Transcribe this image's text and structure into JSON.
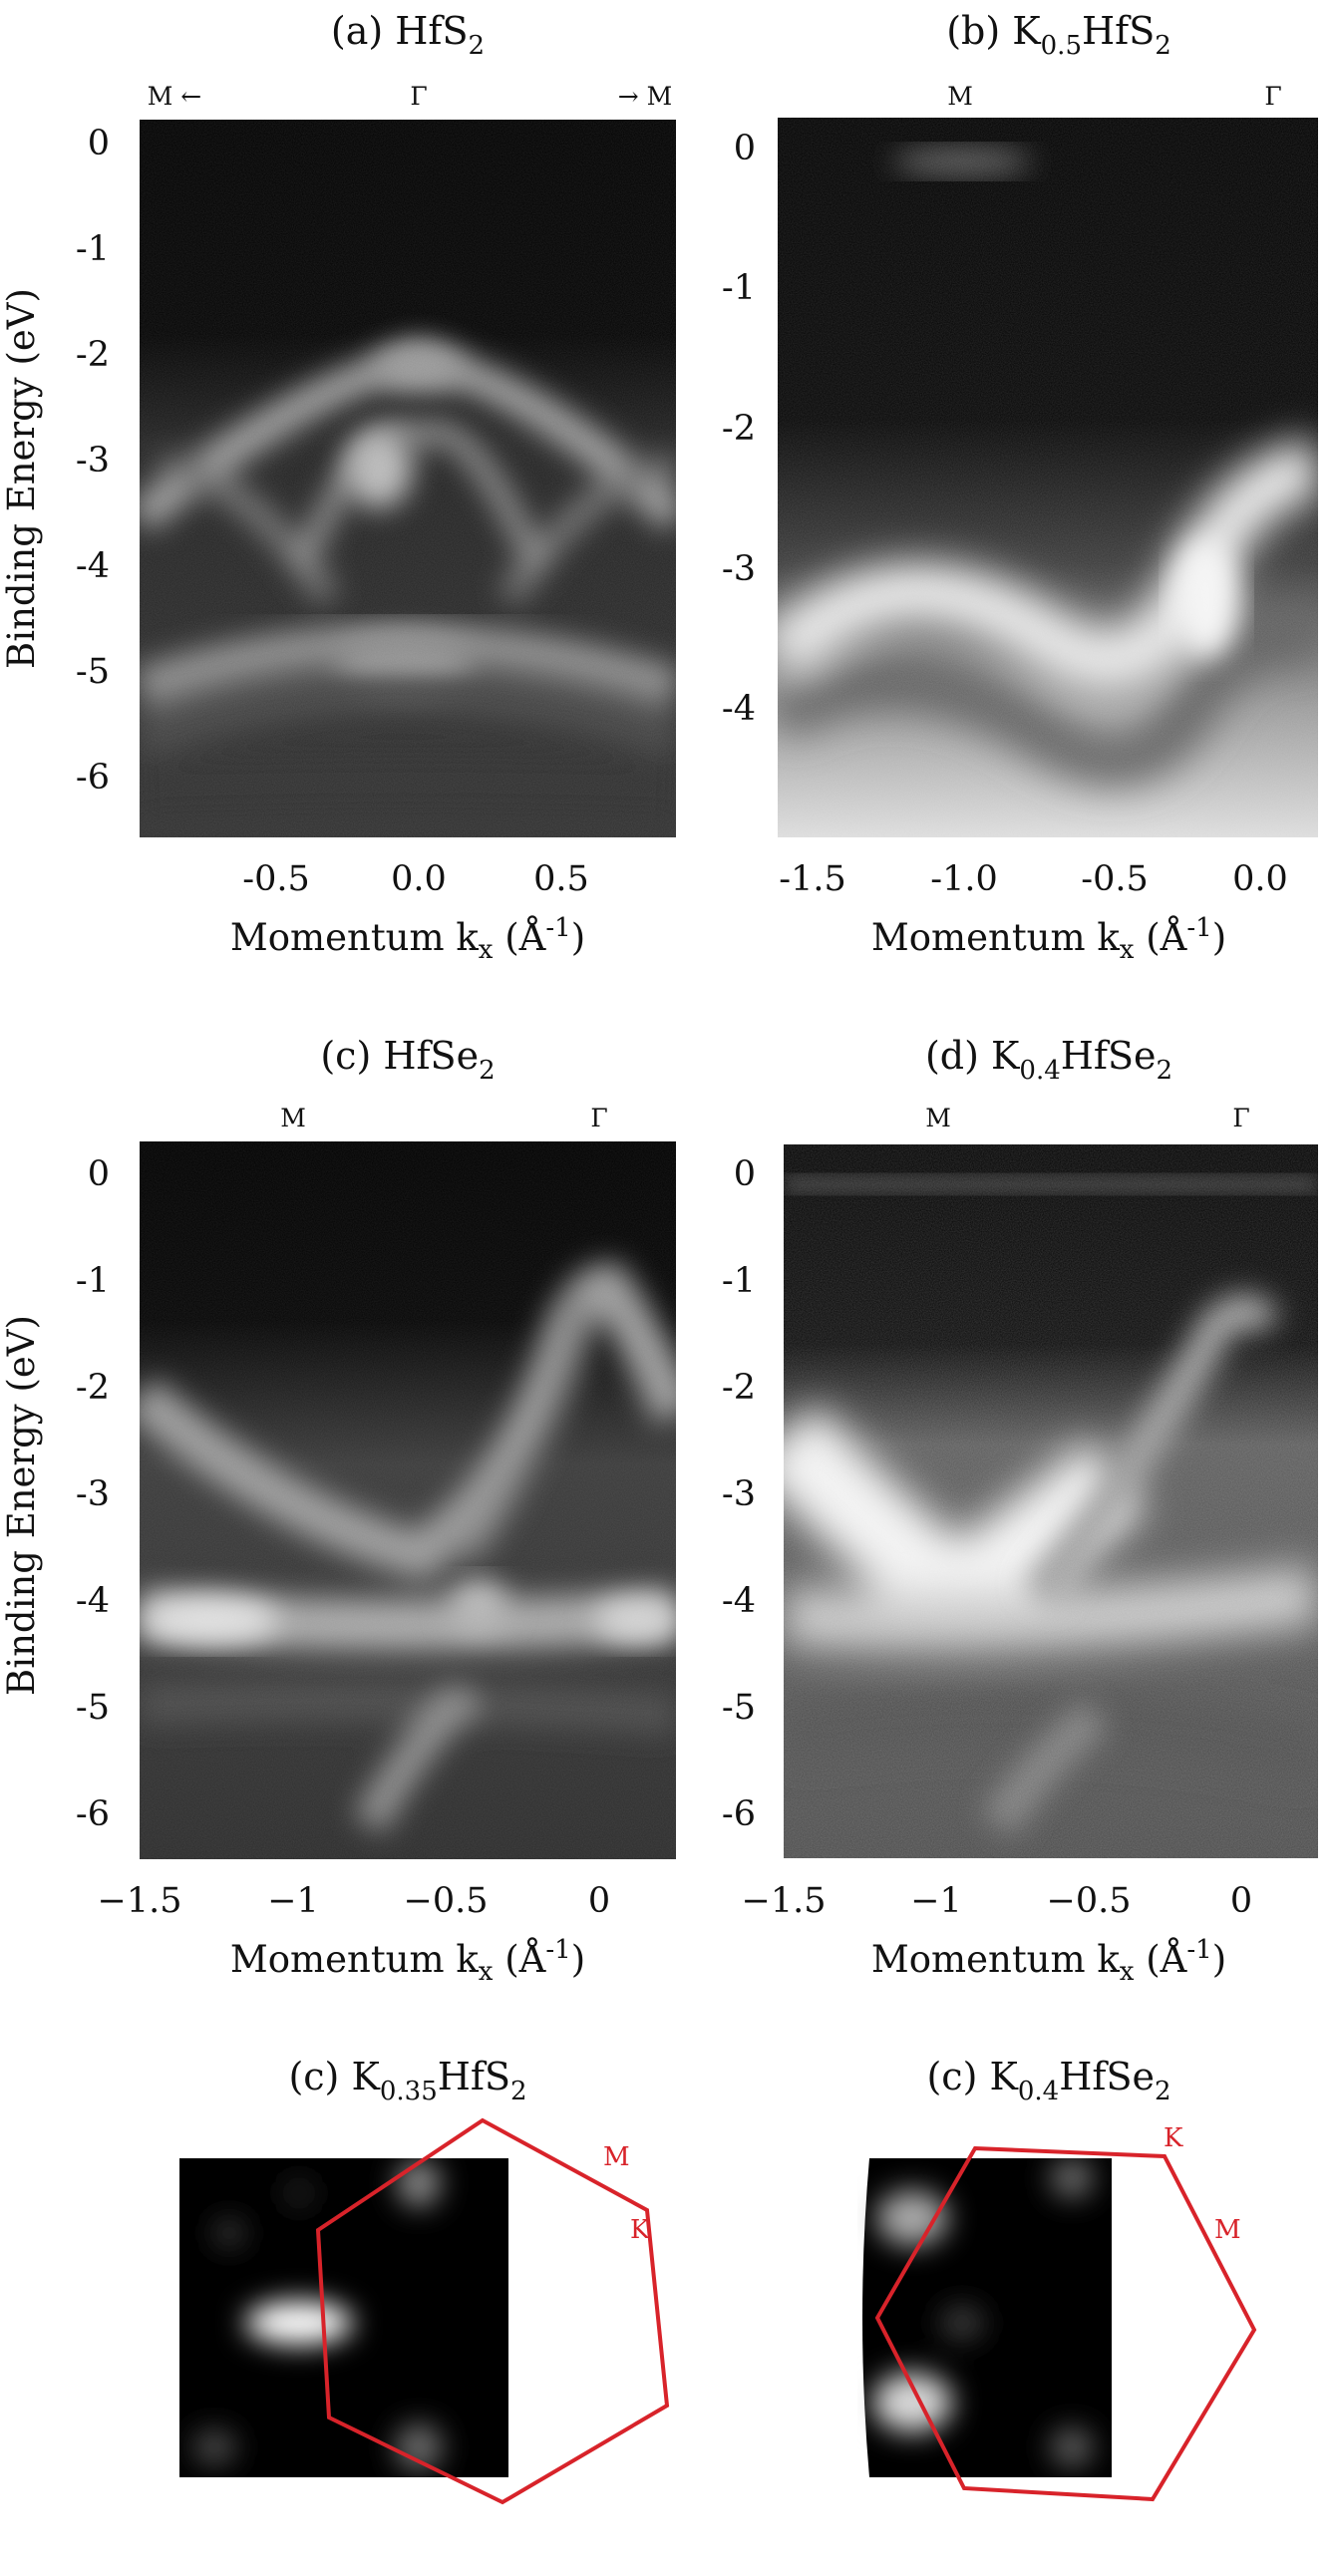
{
  "colors": {
    "hexagon": "#d8232a",
    "intensity_low": "#000000",
    "intensity_high": "#ffffff",
    "axis": "#111111"
  },
  "panels": [
    {
      "id": "a",
      "title_prefix": "(a) HfS",
      "title_sub": "2",
      "hs_labels": [
        "M ←",
        "Γ",
        "→ M"
      ],
      "xlabel": "Momentum k",
      "xlabel_sub": "x",
      "xlabel_unit": " (Å",
      "xlabel_exp": "-1",
      "xlabel_close": ")",
      "ylabel": "Binding Energy (eV)",
      "xticks": [
        "-0.5",
        "0.0",
        "0.5"
      ],
      "yticks": [
        "0",
        "-1",
        "-2",
        "-3",
        "-4",
        "-5",
        "-6"
      ]
    },
    {
      "id": "b",
      "title_prefix": "(b) K",
      "title_sub": "0.5",
      "title_suffix": "HfS",
      "title_sub2": "2",
      "hs_labels": [
        "M",
        "Γ"
      ],
      "xlabel": "Momentum k",
      "xlabel_sub": "x",
      "xlabel_unit": " (Å",
      "xlabel_exp": "-1",
      "xlabel_close": ")",
      "xticks": [
        "-1.5",
        "-1.0",
        "-0.5",
        "0.0"
      ],
      "yticks": [
        "0",
        "-1",
        "-2",
        "-3",
        "-4"
      ]
    },
    {
      "id": "c",
      "title_prefix": "(c) HfSe",
      "title_sub": "2",
      "hs_labels": [
        "M",
        "Γ"
      ],
      "xlabel": "Momentum k",
      "xlabel_sub": "x",
      "xlabel_unit": " (Å",
      "xlabel_exp": "-1",
      "xlabel_close": ")",
      "ylabel": "Binding Energy (eV)",
      "xticks": [
        "−1.5",
        "−1",
        "−0.5",
        "0"
      ],
      "yticks": [
        "0",
        "-1",
        "-2",
        "-3",
        "-4",
        "-5",
        "-6"
      ]
    },
    {
      "id": "d",
      "title_prefix": "(d) K",
      "title_sub": "0.4",
      "title_suffix": "HfSe",
      "title_sub2": "2",
      "hs_labels": [
        "M",
        "Γ"
      ],
      "xlabel": "Momentum k",
      "xlabel_sub": "x",
      "xlabel_unit": " (Å",
      "xlabel_exp": "-1",
      "xlabel_close": ")",
      "xticks": [
        "−1.5",
        "−1",
        "−0.5",
        "0"
      ],
      "yticks": [
        "0",
        "-1",
        "-2",
        "-3",
        "-4",
        "-5",
        "-6"
      ]
    }
  ],
  "fermi_maps": [
    {
      "title_prefix": "(c) K",
      "title_sub": "0.35",
      "title_suffix": "HfS",
      "title_sub2": "2",
      "labels": [
        "M",
        "K"
      ]
    },
    {
      "title_prefix": "(c) K",
      "title_sub": "0.4",
      "title_suffix": "HfSe",
      "title_sub2": "2",
      "labels": [
        "K",
        "M"
      ]
    }
  ]
}
